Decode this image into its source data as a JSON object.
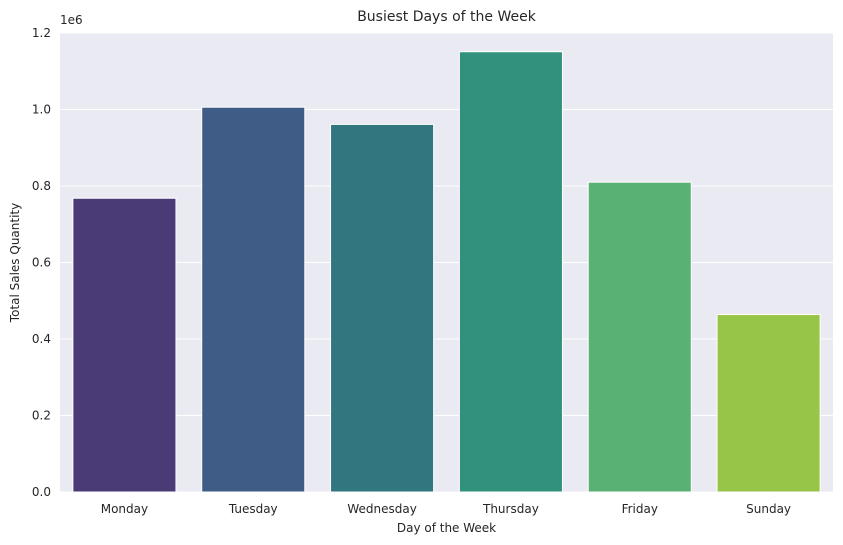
{
  "chart_data": {
    "type": "bar",
    "title": "Busiest Days of the Week",
    "xlabel": "Day of the Week",
    "ylabel": "Total Sales Quantity",
    "offset_label": "1e6",
    "categories": [
      "Monday",
      "Tuesday",
      "Wednesday",
      "Thursday",
      "Friday",
      "Sunday"
    ],
    "values": [
      0.768,
      1.006,
      0.961,
      1.151,
      0.81,
      0.464
    ],
    "ylim": [
      0,
      1.2
    ],
    "yticks": [
      "0.0",
      "0.2",
      "0.4",
      "0.6",
      "0.8",
      "1.0",
      "1.2"
    ],
    "colors": [
      "#4a3a76",
      "#3f5c86",
      "#32767f",
      "#31917d",
      "#59b273",
      "#97c548"
    ],
    "grid": true,
    "background": "#eaeaf2"
  }
}
